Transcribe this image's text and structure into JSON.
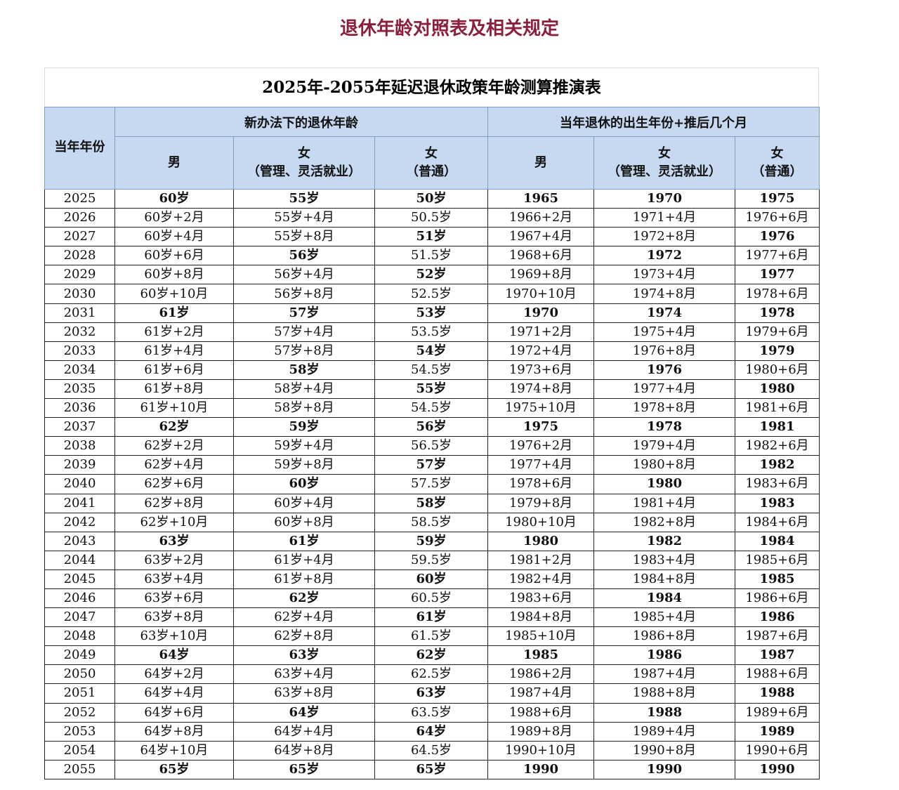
{
  "header": {
    "title": "退休年龄对照表及相关规定"
  },
  "table": {
    "title": "2025年-2055年延迟退休政策年龄测算推演表",
    "year_header": "当年年份",
    "groups": [
      "新办法下的退休年龄",
      "当年退休的出生年份+推后几个月"
    ],
    "subheaders": [
      [
        "男"
      ],
      [
        "女",
        "（管理、灵活就业）"
      ],
      [
        "女",
        "（普通）"
      ],
      [
        "男"
      ],
      [
        "女",
        "（管理、灵活就业）"
      ],
      [
        "女",
        "（普通）"
      ]
    ],
    "rows": [
      [
        "2025",
        "60岁",
        "55岁",
        "50岁",
        "1965",
        "1970",
        "1975"
      ],
      [
        "2026",
        "60岁+2月",
        "55岁+4月",
        "50.5岁",
        "1966+2月",
        "1971+4月",
        "1976+6月"
      ],
      [
        "2027",
        "60岁+4月",
        "55岁+8月",
        "51岁",
        "1967+4月",
        "1972+8月",
        "1976"
      ],
      [
        "2028",
        "60岁+6月",
        "56岁",
        "51.5岁",
        "1968+6月",
        "1972",
        "1977+6月"
      ],
      [
        "2029",
        "60岁+8月",
        "56岁+4月",
        "52岁",
        "1969+8月",
        "1973+4月",
        "1977"
      ],
      [
        "2030",
        "60岁+10月",
        "56岁+8月",
        "52.5岁",
        "1970+10月",
        "1974+8月",
        "1978+6月"
      ],
      [
        "2031",
        "61岁",
        "57岁",
        "53岁",
        "1970",
        "1974",
        "1978"
      ],
      [
        "2032",
        "61岁+2月",
        "57岁+4月",
        "53.5岁",
        "1971+2月",
        "1975+4月",
        "1979+6月"
      ],
      [
        "2033",
        "61岁+4月",
        "57岁+8月",
        "54岁",
        "1972+4月",
        "1976+8月",
        "1979"
      ],
      [
        "2034",
        "61岁+6月",
        "58岁",
        "54.5岁",
        "1973+6月",
        "1976",
        "1980+6月"
      ],
      [
        "2035",
        "61岁+8月",
        "58岁+4月",
        "55岁",
        "1974+8月",
        "1977+4月",
        "1980"
      ],
      [
        "2036",
        "61岁+10月",
        "58岁+8月",
        "54.5岁",
        "1975+10月",
        "1978+8月",
        "1981+6月"
      ],
      [
        "2037",
        "62岁",
        "59岁",
        "56岁",
        "1975",
        "1978",
        "1981"
      ],
      [
        "2038",
        "62岁+2月",
        "59岁+4月",
        "56.5岁",
        "1976+2月",
        "1979+4月",
        "1982+6月"
      ],
      [
        "2039",
        "62岁+4月",
        "59岁+8月",
        "57岁",
        "1977+4月",
        "1980+8月",
        "1982"
      ],
      [
        "2040",
        "62岁+6月",
        "60岁",
        "57.5岁",
        "1978+6月",
        "1980",
        "1983+6月"
      ],
      [
        "2041",
        "62岁+8月",
        "60岁+4月",
        "58岁",
        "1979+8月",
        "1981+4月",
        "1983"
      ],
      [
        "2042",
        "62岁+10月",
        "60岁+8月",
        "58.5岁",
        "1980+10月",
        "1982+8月",
        "1984+6月"
      ],
      [
        "2043",
        "63岁",
        "61岁",
        "59岁",
        "1980",
        "1982",
        "1984"
      ],
      [
        "2044",
        "63岁+2月",
        "61岁+4月",
        "59.5岁",
        "1981+2月",
        "1983+4月",
        "1985+6月"
      ],
      [
        "2045",
        "63岁+4月",
        "61岁+8月",
        "60岁",
        "1982+4月",
        "1984+8月",
        "1985"
      ],
      [
        "2046",
        "63岁+6月",
        "62岁",
        "60.5岁",
        "1983+6月",
        "1984",
        "1986+6月"
      ],
      [
        "2047",
        "63岁+8月",
        "62岁+4月",
        "61岁",
        "1984+8月",
        "1985+4月",
        "1986"
      ],
      [
        "2048",
        "63岁+10月",
        "62岁+8月",
        "61.5岁",
        "1985+10月",
        "1986+8月",
        "1987+6月"
      ],
      [
        "2049",
        "64岁",
        "63岁",
        "62岁",
        "1985",
        "1986",
        "1987"
      ],
      [
        "2050",
        "64岁+2月",
        "63岁+4月",
        "62.5岁",
        "1986+2月",
        "1987+4月",
        "1988+6月"
      ],
      [
        "2051",
        "64岁+4月",
        "63岁+8月",
        "63岁",
        "1987+4月",
        "1988+8月",
        "1988"
      ],
      [
        "2052",
        "64岁+6月",
        "64岁",
        "63.5岁",
        "1988+6月",
        "1988",
        "1989+6月"
      ],
      [
        "2053",
        "64岁+8月",
        "64岁+4月",
        "64岁",
        "1989+8月",
        "1989+4月",
        "1989"
      ],
      [
        "2054",
        "64岁+10月",
        "64岁+8月",
        "64.5岁",
        "1990+10月",
        "1990+8月",
        "1990+6月"
      ],
      [
        "2055",
        "65岁",
        "65岁",
        "65岁",
        "1990",
        "1990",
        "1990"
      ]
    ]
  }
}
